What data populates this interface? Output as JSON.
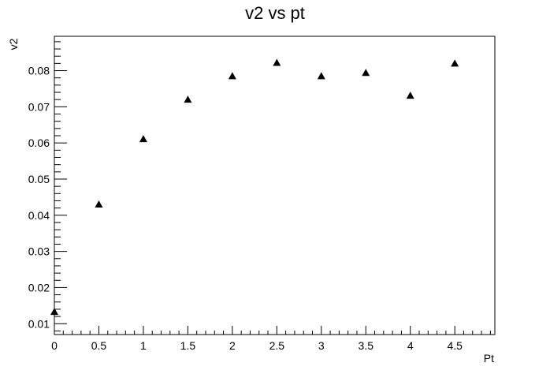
{
  "chart_data": {
    "type": "scatter",
    "title": "v2 vs pt",
    "xlabel": "Pt",
    "ylabel": "v2",
    "xlim": [
      0,
      4.95
    ],
    "ylim": [
      0.007,
      0.0895
    ],
    "xticks": [
      "0",
      "0.5",
      "1",
      "1.5",
      "2",
      "2.5",
      "3",
      "3.5",
      "4",
      "4.5"
    ],
    "yticks": [
      "0.01",
      "0.02",
      "0.03",
      "0.04",
      "0.05",
      "0.06",
      "0.07",
      "0.08"
    ],
    "grid": false,
    "marker": "triangle-up",
    "marker_color": "#000000",
    "series": [
      {
        "x": [
          0,
          0.5,
          1,
          1.5,
          2,
          2.5,
          3,
          3.5,
          4,
          4.5
        ],
        "y": [
          0.0133,
          0.043,
          0.0611,
          0.072,
          0.0785,
          0.0822,
          0.0785,
          0.0794,
          0.0731,
          0.082
        ]
      }
    ]
  }
}
